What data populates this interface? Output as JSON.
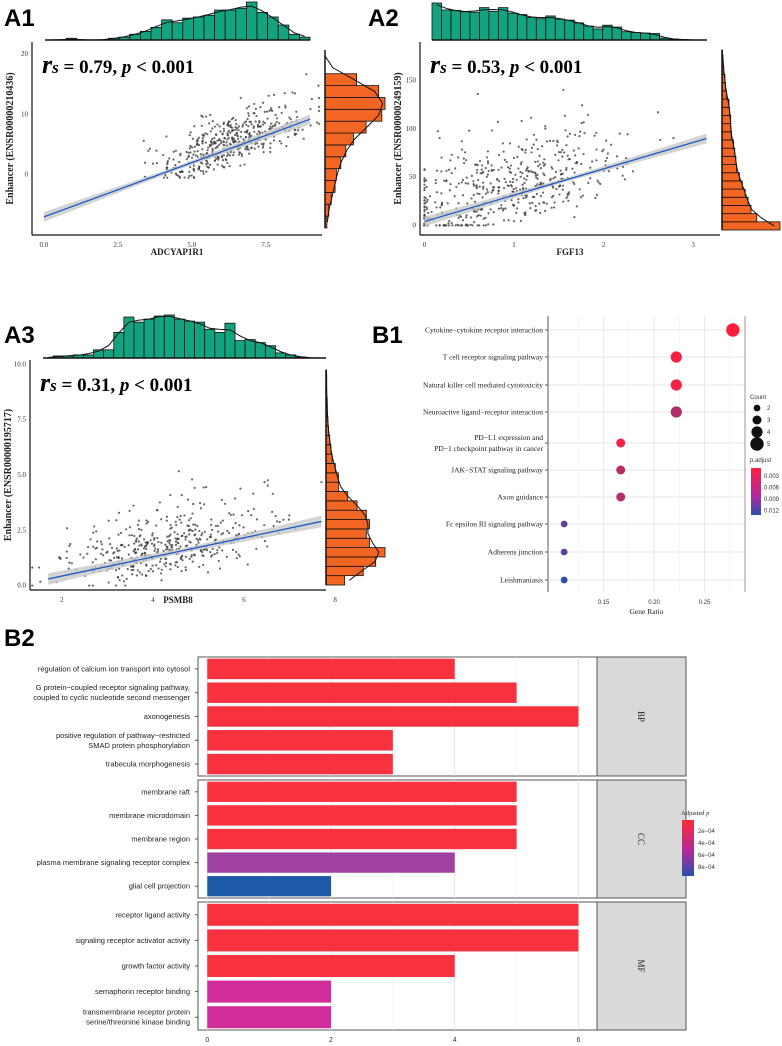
{
  "chart_data": [
    {
      "id": "A1",
      "type": "scatter",
      "panel_label": "A1",
      "xlabel": "ADCYAP1R1",
      "ylabel": "Enhancer (ENSR00000210436)",
      "stat_r": "r",
      "stat_s": "s",
      "stat_text": " = 0.79, ",
      "stat_p": "p",
      "stat_tail": " < 0.001",
      "xlim": [
        -0.4,
        9.4
      ],
      "ylim": [
        -10,
        22
      ],
      "xticks": [
        "0.0",
        "2.5",
        "5.0",
        "7.5"
      ],
      "xtick_values": [
        0,
        2.5,
        5,
        7.5
      ],
      "yticks": [
        "0",
        "10",
        "20"
      ],
      "ytick_values": [
        0,
        10,
        20
      ],
      "regression": {
        "x": [
          0,
          9
        ],
        "y": [
          -7,
          9.2
        ]
      },
      "points": {
        "n": 480,
        "x_mean": 6.2,
        "x_sd": 1.3,
        "slope": 1.8,
        "intercept": -7,
        "noise": 2.8,
        "ymin": -0.5
      },
      "top_hist": [
        0,
        0,
        0.3,
        0,
        0,
        0,
        0.3,
        0.5,
        1,
        1.5,
        2.2,
        3.5,
        3,
        3.8,
        4,
        4.3,
        5.2,
        5.2,
        5.5,
        6.6,
        4.8,
        4,
        2.6,
        1,
        0.5
      ],
      "right_hist": [
        0.3,
        0.6,
        1,
        1.6,
        1.8,
        2.5,
        3.3,
        4.5,
        6.5,
        9,
        9.5,
        8.5,
        5,
        0,
        0
      ]
    },
    {
      "id": "A2",
      "type": "scatter",
      "panel_label": "A2",
      "xlabel": "FGF13",
      "ylabel": "Enhancer (ENSR00000249159)",
      "stat_r": "r",
      "stat_s": "s",
      "stat_text": " = 0.53, ",
      "stat_p": "p",
      "stat_tail": " < 0.001",
      "xlim": [
        -0.05,
        3.3
      ],
      "ylim": [
        -10,
        190
      ],
      "xticks": [
        "0",
        "1",
        "2",
        "3"
      ],
      "xtick_values": [
        0,
        1,
        2,
        3
      ],
      "yticks": [
        "0",
        "50",
        "100",
        "150"
      ],
      "ytick_values": [
        0,
        50,
        100,
        150
      ],
      "regression": {
        "x": [
          0,
          3.15
        ],
        "y": [
          4,
          90
        ]
      },
      "points": {
        "n": 520,
        "x_mean": 0.9,
        "x_sd": 0.65,
        "slope": 27,
        "intercept": 4,
        "noise": 30,
        "ymin": 0
      },
      "top_hist": [
        8,
        6.5,
        6.4,
        6.1,
        6,
        7,
        6.2,
        7,
        5.8,
        5.5,
        4.9,
        4.6,
        5.2,
        4.5,
        4.3,
        3.7,
        3,
        2.4,
        3.2,
        2.8,
        1.8,
        1.6,
        1.5,
        1.4,
        0.4,
        0.2,
        0.1,
        0,
        0
      ],
      "right_hist": [
        10,
        6,
        5,
        4.5,
        4,
        3.5,
        3,
        2.5,
        2.4,
        2.2,
        2,
        1.6,
        1.5,
        1.5,
        1.3,
        1.2,
        0.8,
        0.6,
        0.5,
        0.3,
        0.2,
        0.1
      ]
    },
    {
      "id": "A3",
      "type": "scatter",
      "panel_label": "A3",
      "xlabel": "PSMB8",
      "ylabel": "Enhancer (ENSR00000195717)",
      "stat_r": "r",
      "stat_s": "s",
      "stat_text": " = 0.31, ",
      "stat_p": "p",
      "stat_tail": " < 0.001",
      "xlim": [
        1.3,
        7.8
      ],
      "ylim": [
        -0.2,
        10.2
      ],
      "xticks": [
        "2",
        "4",
        "6",
        "8"
      ],
      "xtick_values": [
        2,
        4,
        6,
        8
      ],
      "yticks": [
        "0.0",
        "2.5",
        "5.0",
        "7.5",
        "10.0"
      ],
      "ytick_values": [
        0,
        2.5,
        5,
        7.5,
        10
      ],
      "regression": {
        "x": [
          1.7,
          7.7
        ],
        "y": [
          0.3,
          2.9
        ]
      },
      "points": {
        "n": 460,
        "x_mean": 4.3,
        "x_sd": 1.1,
        "slope": 0.43,
        "intercept": -0.4,
        "noise": 1.0,
        "ymin": 0
      },
      "top_hist": [
        0,
        0.2,
        0.2,
        0.3,
        0.3,
        0.8,
        0.8,
        2.5,
        4,
        3.5,
        3.8,
        4.1,
        4.2,
        3.8,
        3.6,
        3.5,
        2.8,
        2.5,
        3.4,
        1.7,
        1.8,
        1.5,
        1.2,
        0.5,
        0.3,
        0.1,
        0,
        0
      ],
      "right_hist": [
        3,
        6,
        8,
        9.5,
        7,
        6.5,
        7,
        6.5,
        5,
        3.5,
        2,
        2,
        1.5,
        1,
        0.8,
        0.6,
        0.4,
        0.3,
        0.2,
        0.2,
        0.1,
        0.1,
        0.1
      ]
    },
    {
      "id": "B1",
      "type": "scatter",
      "panel_label": "B1",
      "xlabel": "Gene Ratio",
      "xlim": [
        0.095,
        0.29
      ],
      "xticks": [
        "0.15",
        "0.20",
        "0.25"
      ],
      "xtick_values": [
        0.15,
        0.2,
        0.25
      ],
      "terms": [
        {
          "label": [
            "Cytokine−cytokine receptor interaction"
          ],
          "gene_ratio": 0.278,
          "count": 5,
          "p_adjust": 0.0005
        },
        {
          "label": [
            "T cell receptor signaling pathway"
          ],
          "gene_ratio": 0.222,
          "count": 4,
          "p_adjust": 0.0012
        },
        {
          "label": [
            "Natural killer cell mediated cytotoxicity"
          ],
          "gene_ratio": 0.222,
          "count": 4,
          "p_adjust": 0.0012
        },
        {
          "label": [
            "Neuroactive ligand−receptor interaction"
          ],
          "gene_ratio": 0.222,
          "count": 4,
          "p_adjust": 0.0048
        },
        {
          "label": [
            "PD−L1 expression and",
            "PD−1 checkpoint pathway in cancer"
          ],
          "gene_ratio": 0.167,
          "count": 3,
          "p_adjust": 0.0015
        },
        {
          "label": [
            "JAK−STAT signaling pathway"
          ],
          "gene_ratio": 0.167,
          "count": 3,
          "p_adjust": 0.0045
        },
        {
          "label": [
            "Axon guidance"
          ],
          "gene_ratio": 0.167,
          "count": 3,
          "p_adjust": 0.0048
        },
        {
          "label": [
            "Fc epsilon RI signaling pathway"
          ],
          "gene_ratio": 0.111,
          "count": 2,
          "p_adjust": 0.0095
        },
        {
          "label": [
            "Adherens junction"
          ],
          "gene_ratio": 0.111,
          "count": 2,
          "p_adjust": 0.0095
        },
        {
          "label": [
            "Leishmaniasis"
          ],
          "gene_ratio": 0.111,
          "count": 2,
          "p_adjust": 0.0125
        }
      ],
      "legend_count": {
        "title": "Count",
        "values": [
          2,
          3,
          4,
          5
        ]
      },
      "legend_color": {
        "title": "p.adjust",
        "labels": [
          "0.003",
          "0.006",
          "0.009",
          "0.012"
        ],
        "low_color": "#ff1f3d",
        "high_color": "#2a4fb0",
        "range": [
          0.0005,
          0.0125
        ]
      }
    },
    {
      "id": "B2",
      "type": "bar",
      "panel_label": "B2",
      "xlim": [
        -0.15,
        6.3
      ],
      "xticks": [
        "0",
        "2",
        "4",
        "6"
      ],
      "xtick_values": [
        0,
        2,
        4,
        6
      ],
      "facets": [
        {
          "name": "BP",
          "terms": [
            {
              "label": [
                "regulation of calcium ion transport into cytosol"
              ],
              "count": 4,
              "p_adjust": 1e-05
            },
            {
              "label": [
                "G protein−coupled receptor signaling pathway,",
                "coupled to cyclic nucleotide second messenger"
              ],
              "count": 5,
              "p_adjust": 1e-05
            },
            {
              "label": [
                "axonogenesis"
              ],
              "count": 6,
              "p_adjust": 1e-05
            },
            {
              "label": [
                "positive regulation of pathway−restricted",
                "SMAD protein phosphorylation"
              ],
              "count": 3,
              "p_adjust": 1e-05
            },
            {
              "label": [
                "trabecula morphogenesis"
              ],
              "count": 3,
              "p_adjust": 1e-05
            }
          ]
        },
        {
          "name": "CC",
          "terms": [
            {
              "label": [
                "membrane raft"
              ],
              "count": 5,
              "p_adjust": 1e-05
            },
            {
              "label": [
                "membrane microdomain"
              ],
              "count": 5,
              "p_adjust": 1e-05
            },
            {
              "label": [
                "membrane region"
              ],
              "count": 5,
              "p_adjust": 1e-05
            },
            {
              "label": [
                "plasma membrane signaling receptor complex"
              ],
              "count": 4,
              "p_adjust": 0.00058
            },
            {
              "label": [
                "glial cell projection"
              ],
              "count": 2,
              "p_adjust": 0.00092
            }
          ]
        },
        {
          "name": "MF",
          "terms": [
            {
              "label": [
                "receptor ligand activity"
              ],
              "count": 6,
              "p_adjust": 1e-05
            },
            {
              "label": [
                "signaling receptor activator activity"
              ],
              "count": 6,
              "p_adjust": 1e-05
            },
            {
              "label": [
                "growth factor activity"
              ],
              "count": 4,
              "p_adjust": 1e-05
            },
            {
              "label": [
                "semaphorin receptor binding"
              ],
              "count": 2,
              "p_adjust": 0.00042
            },
            {
              "label": [
                "transmembrane receptor protein",
                "serine/threonine kinase binding"
              ],
              "count": 2,
              "p_adjust": 0.00042
            }
          ]
        }
      ],
      "legend_color": {
        "title": "Adjusted ",
        "title_italic": "p",
        "labels": [
          "2e−04",
          "4e−04",
          "6e−04",
          "8e−04"
        ],
        "low_color": "#ff2a36",
        "high_color": "#2a4fb0",
        "range": [
          1e-05,
          0.00095
        ]
      }
    }
  ],
  "colors": {
    "top_hist": "#14a37f",
    "right_hist": "#f26522",
    "regression": "#1f5bc4",
    "band": "#c8c8c8",
    "point": "#333333",
    "strip": "#d9d9d9"
  }
}
